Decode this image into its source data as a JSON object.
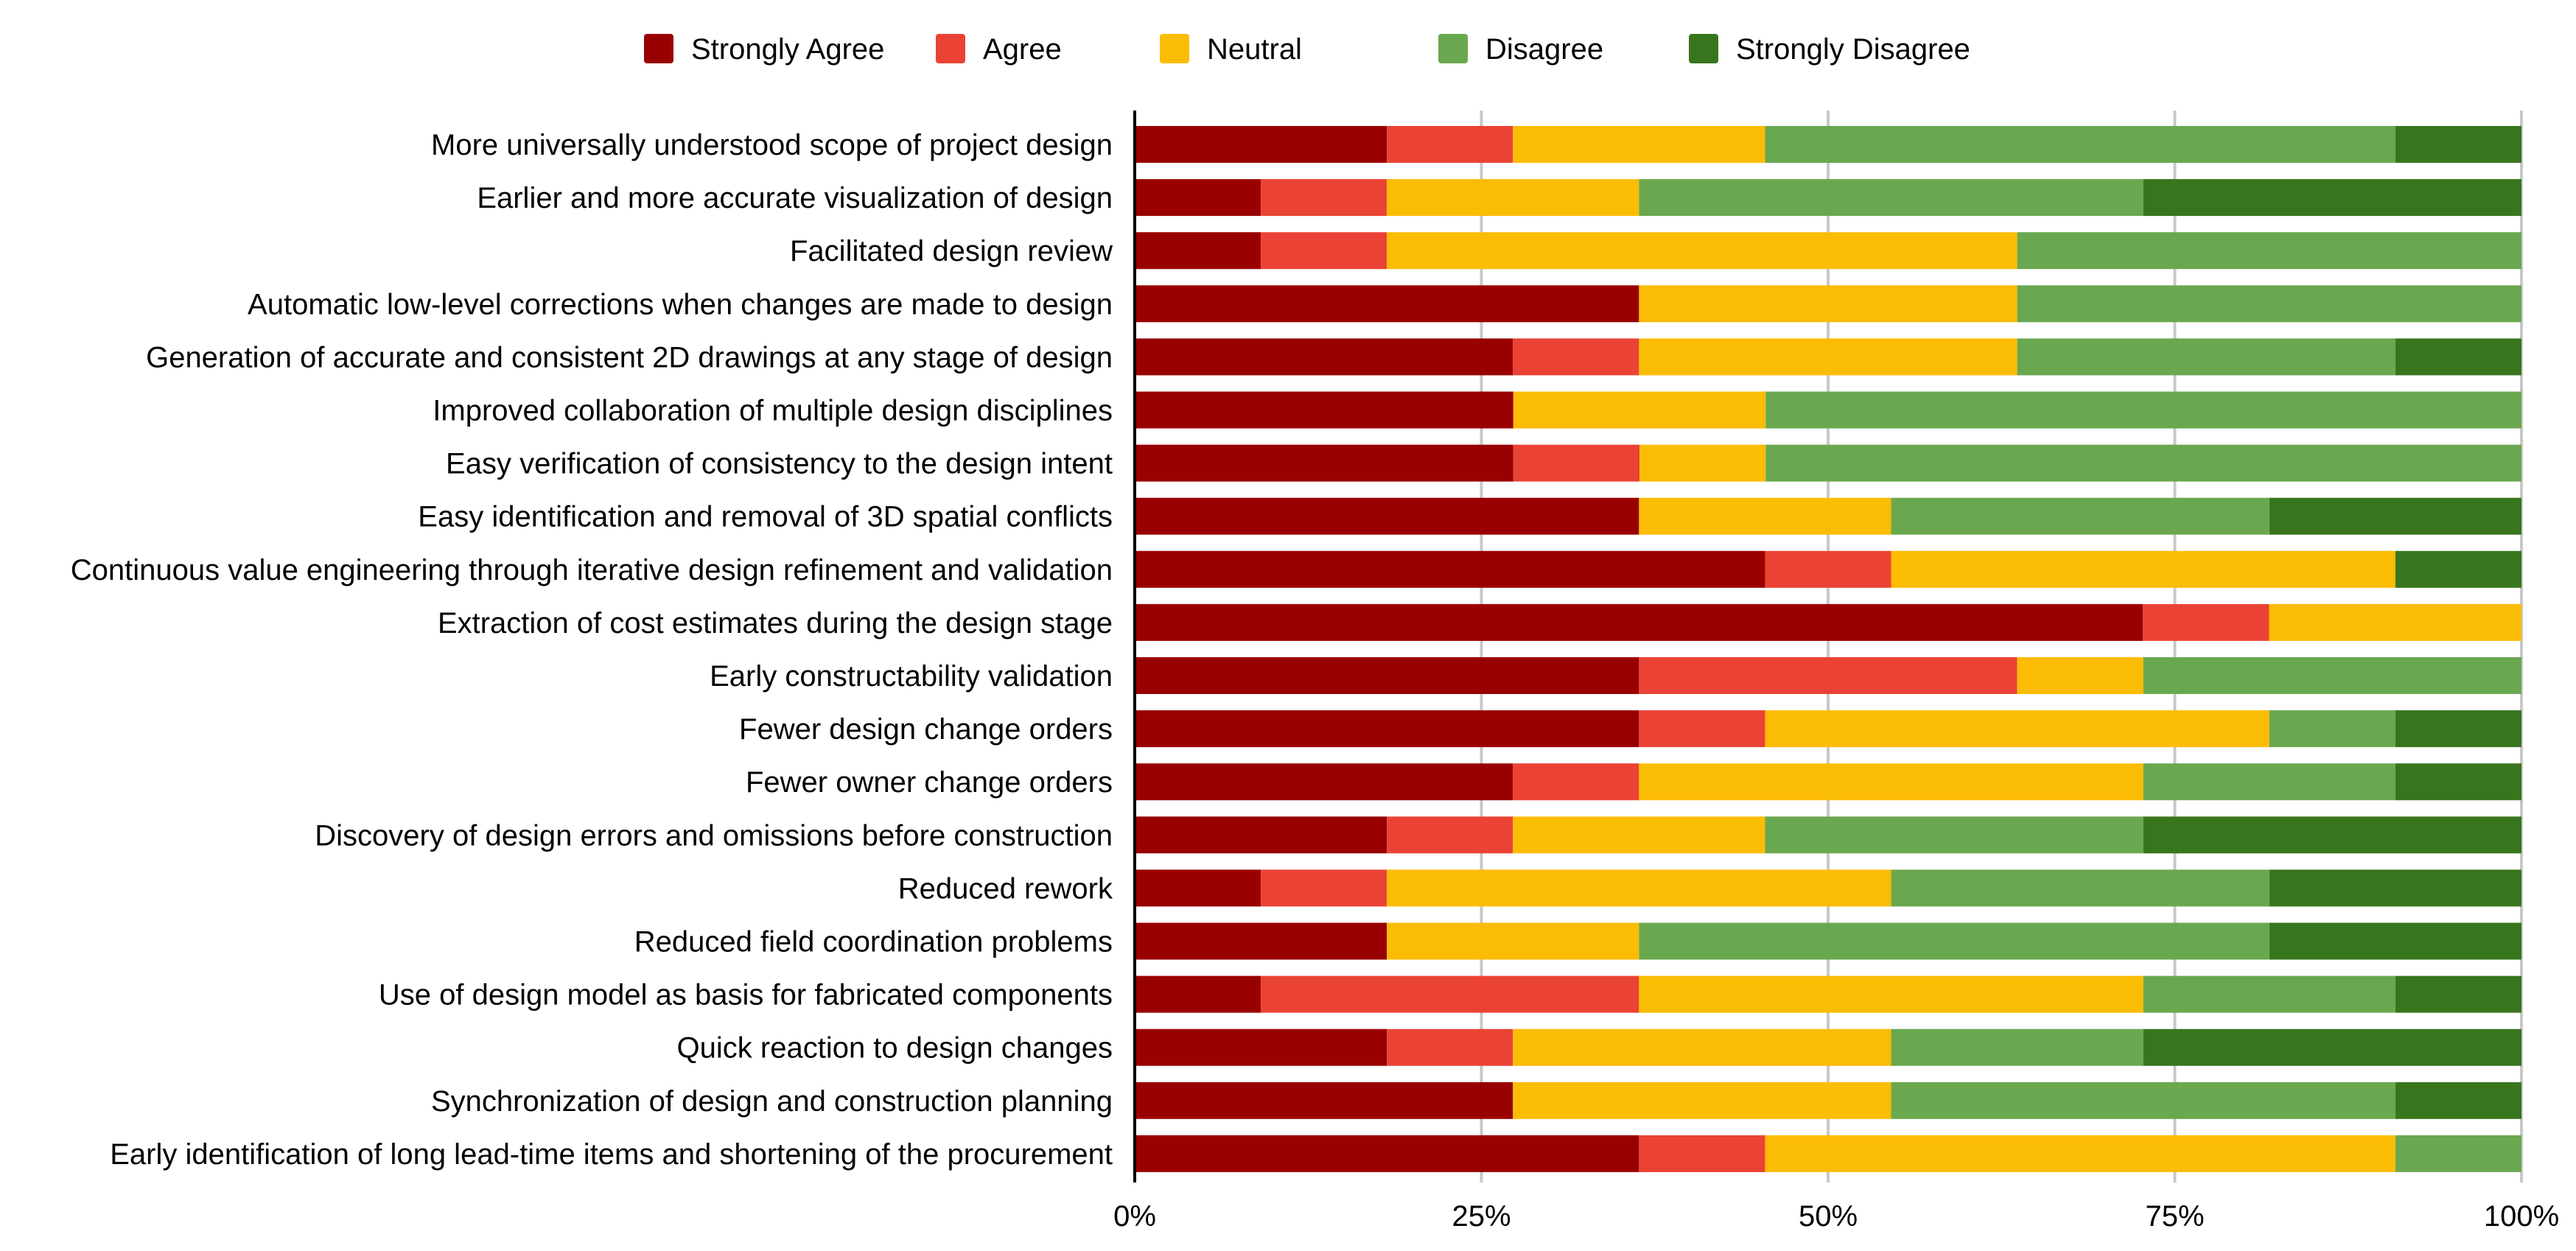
{
  "chart_data": {
    "type": "bar",
    "orientation": "horizontal",
    "stacked": "percent",
    "title": "",
    "xlabel": "",
    "ylabel": "",
    "xlim": [
      0,
      100
    ],
    "grid": true,
    "legend_position": "top",
    "x_tick_labels": [
      "0%",
      "25%",
      "50%",
      "75%",
      "100%"
    ],
    "x_ticks": [
      0,
      25,
      50,
      75,
      100
    ],
    "categories": [
      "More universally understood scope of project design",
      "Earlier and more accurate visualization of design",
      "Facilitated design review",
      "Automatic low-level corrections when changes are made to design",
      "Generation of accurate and consistent 2D drawings at any stage of design",
      "Improved collaboration of multiple design disciplines",
      "Easy verification of consistency to the design intent",
      "Easy identification and removal of 3D spatial conflicts",
      "Continuous value engineering through iterative design refinement and validation",
      "Extraction of cost estimates during the design stage",
      "Early constructability validation",
      "Fewer design change orders",
      "Fewer owner change orders",
      "Discovery of design errors and omissions before construction",
      "Reduced rework",
      "Reduced field coordination problems",
      "Use of design model as basis for fabricated components",
      "Quick reaction to design changes",
      "Synchronization of design and construction planning",
      "Early identification of long lead-time items and shortening of the procurement"
    ],
    "series": [
      {
        "name": "Strongly Agree",
        "color": "#990000",
        "values": [
          18.2,
          9.1,
          9.1,
          36.4,
          27.3,
          27.3,
          27.3,
          36.4,
          45.5,
          72.7,
          36.4,
          36.4,
          27.3,
          18.2,
          9.1,
          18.2,
          9.1,
          18.2,
          27.3,
          36.4
        ]
      },
      {
        "name": "Agree",
        "color": "#ea4335",
        "values": [
          9.1,
          9.1,
          9.1,
          0,
          9.1,
          0,
          9.1,
          0,
          9.1,
          9.1,
          27.3,
          9.1,
          9.1,
          9.1,
          9.1,
          0,
          27.3,
          9.1,
          0,
          9.1
        ]
      },
      {
        "name": "Neutral",
        "color": "#fbbc04",
        "values": [
          18.2,
          18.2,
          45.5,
          27.3,
          27.3,
          18.2,
          9.1,
          18.2,
          36.4,
          18.2,
          9.1,
          36.4,
          36.4,
          18.2,
          36.4,
          18.2,
          36.4,
          27.3,
          27.3,
          45.5
        ]
      },
      {
        "name": "Disagree",
        "color": "#6aa84f",
        "values": [
          45.5,
          36.4,
          36.4,
          36.4,
          27.3,
          54.5,
          54.5,
          27.3,
          0,
          0,
          27.3,
          9.1,
          18.2,
          27.3,
          27.3,
          45.5,
          18.2,
          18.2,
          36.4,
          9.1
        ]
      },
      {
        "name": "Strongly Disagree",
        "color": "#38761d",
        "values": [
          9.1,
          27.3,
          0,
          0,
          9.1,
          0,
          0,
          18.2,
          9.1,
          0,
          0,
          9.1,
          9.1,
          27.3,
          18.2,
          18.2,
          9.1,
          27.3,
          9.1,
          0
        ]
      }
    ]
  }
}
